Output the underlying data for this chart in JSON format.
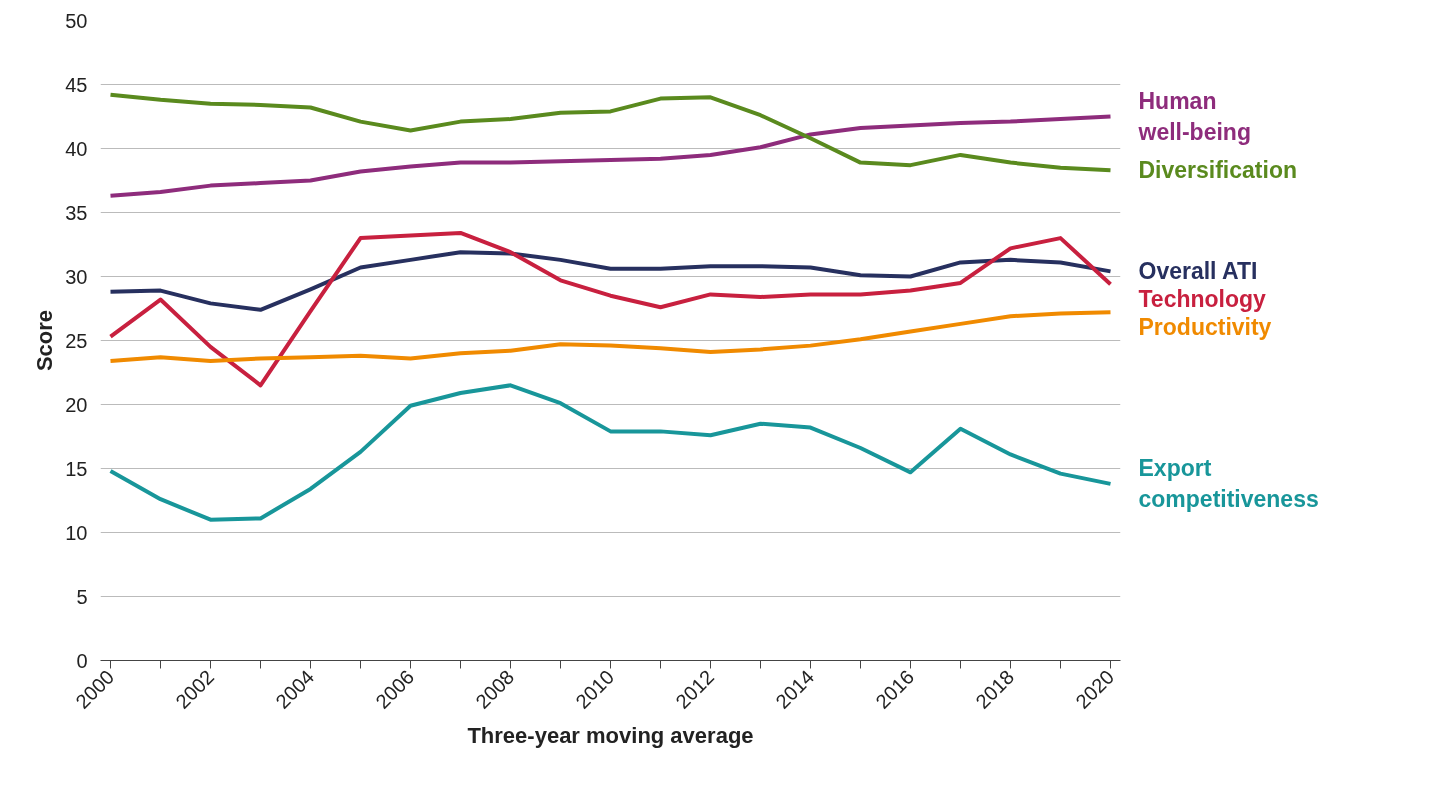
{
  "chart_data": {
    "type": "line",
    "xlabel": "Three-year moving average",
    "ylabel": "Score",
    "x": [
      2000,
      2001,
      2002,
      2003,
      2004,
      2005,
      2006,
      2007,
      2008,
      2009,
      2010,
      2011,
      2012,
      2013,
      2014,
      2015,
      2016,
      2017,
      2018,
      2019,
      2020
    ],
    "xlim": [
      1999.8,
      2020.2
    ],
    "ylim": [
      0,
      50
    ],
    "xticks": [
      2000,
      {
        "value": 2001,
        "label": null
      },
      2002,
      {
        "value": 2003,
        "label": null
      },
      2004,
      {
        "value": 2005,
        "label": null
      },
      2006,
      {
        "value": 2007,
        "label": null
      },
      2008,
      {
        "value": 2009,
        "label": null
      },
      2010,
      {
        "value": 2011,
        "label": null
      },
      2012,
      {
        "value": 2013,
        "label": null
      },
      2014,
      {
        "value": 2015,
        "label": null
      },
      2016,
      {
        "value": 2017,
        "label": null
      },
      2018,
      {
        "value": 2019,
        "label": null
      },
      2020
    ],
    "yticks": [
      0,
      5,
      10,
      15,
      20,
      25,
      30,
      35,
      40,
      45,
      50
    ],
    "grid": "y",
    "legend": false,
    "line_style": "solid",
    "series": [
      {
        "name": "Human well-being",
        "color": "#8e2c7c",
        "values": [
          36.3,
          36.6,
          37.1,
          37.3,
          37.5,
          38.2,
          38.6,
          38.9,
          38.9,
          39.0,
          39.1,
          39.2,
          39.5,
          40.1,
          41.1,
          41.6,
          41.8,
          42.0,
          42.1,
          42.3,
          42.5
        ]
      },
      {
        "name": "Diversification",
        "color": "#5a8a1e",
        "values": [
          44.2,
          43.8,
          43.5,
          43.4,
          43.2,
          42.1,
          41.4,
          42.1,
          42.3,
          42.8,
          42.9,
          43.9,
          44.0,
          42.6,
          40.8,
          38.9,
          38.7,
          39.5,
          38.9,
          38.5,
          38.3
        ]
      },
      {
        "name": "Overall ATI",
        "color": "#27305f",
        "values": [
          28.8,
          28.9,
          27.9,
          27.4,
          29.0,
          30.7,
          31.3,
          31.9,
          31.8,
          31.3,
          30.6,
          30.6,
          30.8,
          30.8,
          30.7,
          30.1,
          30.0,
          31.1,
          31.3,
          31.1,
          30.4
        ]
      },
      {
        "name": "Technology",
        "color": "#c8203f",
        "values": [
          25.3,
          28.2,
          24.5,
          21.5,
          27.3,
          33.0,
          33.2,
          33.4,
          31.9,
          29.7,
          28.5,
          27.6,
          28.6,
          28.4,
          28.6,
          28.6,
          28.9,
          29.5,
          32.2,
          33.0,
          29.4
        ]
      },
      {
        "name": "Productivity",
        "color": "#f08a00",
        "values": [
          23.4,
          23.7,
          23.4,
          23.6,
          23.7,
          23.8,
          23.6,
          24.0,
          24.2,
          24.7,
          24.6,
          24.4,
          24.1,
          24.3,
          24.6,
          25.1,
          25.7,
          26.3,
          26.9,
          27.1,
          27.2
        ]
      },
      {
        "name": "Export competitiveness",
        "color": "#18969a",
        "values": [
          14.8,
          12.6,
          11.0,
          11.1,
          13.4,
          16.3,
          19.9,
          20.9,
          21.5,
          20.1,
          17.9,
          17.9,
          17.6,
          18.5,
          18.2,
          16.6,
          14.7,
          18.1,
          16.1,
          14.6,
          13.8
        ]
      }
    ]
  }
}
